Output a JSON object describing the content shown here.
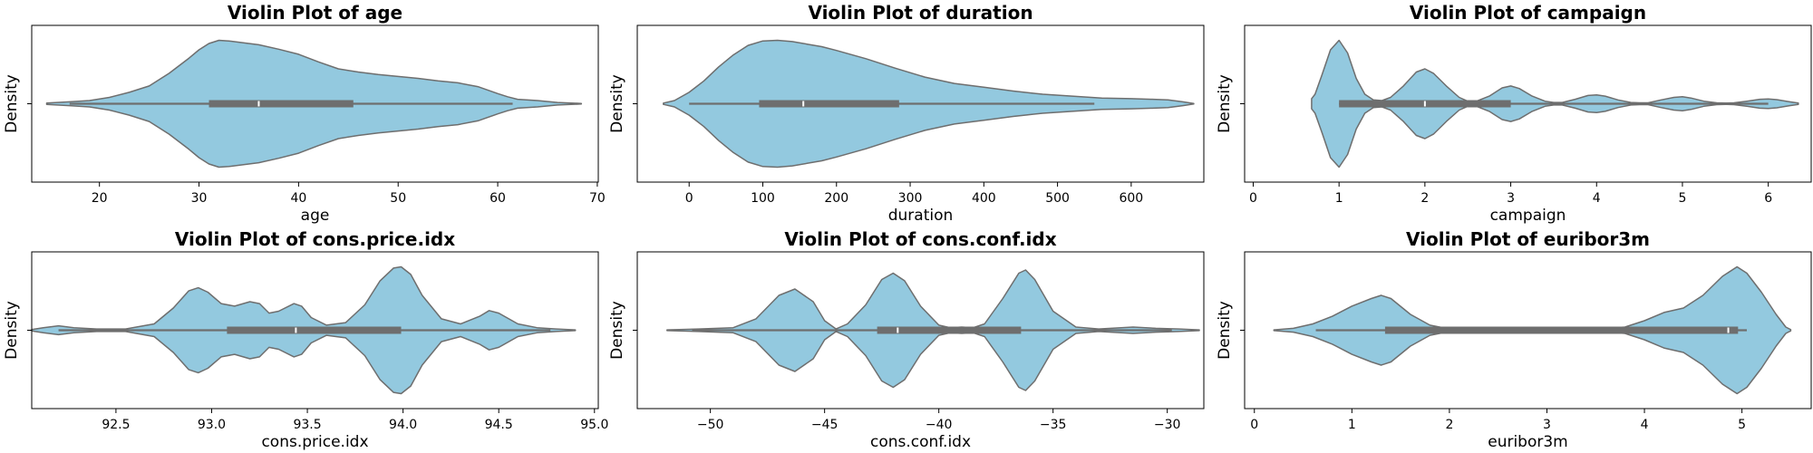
{
  "chart_data": [
    {
      "type": "violin",
      "title": "Violin Plot of age",
      "xlabel": "age",
      "ylabel": "Density",
      "xlim": [
        13.2,
        70.1
      ],
      "xticks": [
        20,
        30,
        40,
        50,
        60,
        70
      ],
      "xtick_labels": [
        "20",
        "30",
        "40",
        "50",
        "60",
        "70"
      ],
      "color": "#93c9df",
      "summary": {
        "min": 17,
        "q1": 31,
        "median": 36,
        "q3": 45.5,
        "max": 61.5
      },
      "density": [
        [
          14.7,
          0.01
        ],
        [
          17,
          0.03
        ],
        [
          19,
          0.05
        ],
        [
          21,
          0.1
        ],
        [
          23,
          0.18
        ],
        [
          25,
          0.28
        ],
        [
          27,
          0.48
        ],
        [
          29,
          0.72
        ],
        [
          30,
          0.85
        ],
        [
          31,
          0.95
        ],
        [
          32,
          1.0
        ],
        [
          33,
          0.99
        ],
        [
          35,
          0.95
        ],
        [
          36,
          0.93
        ],
        [
          38,
          0.86
        ],
        [
          40,
          0.78
        ],
        [
          42,
          0.66
        ],
        [
          44,
          0.55
        ],
        [
          46,
          0.5
        ],
        [
          48,
          0.46
        ],
        [
          50,
          0.43
        ],
        [
          52,
          0.4
        ],
        [
          54,
          0.36
        ],
        [
          56,
          0.33
        ],
        [
          58,
          0.27
        ],
        [
          60,
          0.16
        ],
        [
          61,
          0.11
        ],
        [
          62,
          0.07
        ],
        [
          64,
          0.05
        ],
        [
          66,
          0.02
        ],
        [
          68.4,
          0.005
        ]
      ]
    },
    {
      "type": "violin",
      "title": "Violin Plot of duration",
      "xlabel": "duration",
      "ylabel": "Density",
      "xlim": [
        -70.4,
        698.6
      ],
      "xticks": [
        0,
        100,
        200,
        300,
        400,
        500,
        600,
        700
      ],
      "xtick_labels": [
        "0",
        "100",
        "200",
        "300",
        "400",
        "500",
        "600",
        "700"
      ],
      "color": "#93c9df",
      "summary": {
        "min": 0,
        "q1": 95,
        "median": 155,
        "q3": 285,
        "max": 550
      },
      "density": [
        [
          -35,
          0.01
        ],
        [
          -20,
          0.05
        ],
        [
          0,
          0.18
        ],
        [
          20,
          0.36
        ],
        [
          40,
          0.58
        ],
        [
          60,
          0.77
        ],
        [
          80,
          0.92
        ],
        [
          100,
          0.99
        ],
        [
          120,
          1.0
        ],
        [
          140,
          0.98
        ],
        [
          160,
          0.94
        ],
        [
          180,
          0.9
        ],
        [
          200,
          0.84
        ],
        [
          240,
          0.71
        ],
        [
          280,
          0.56
        ],
        [
          320,
          0.42
        ],
        [
          360,
          0.32
        ],
        [
          400,
          0.26
        ],
        [
          440,
          0.2
        ],
        [
          480,
          0.15
        ],
        [
          520,
          0.12
        ],
        [
          560,
          0.09
        ],
        [
          600,
          0.08
        ],
        [
          630,
          0.07
        ],
        [
          650,
          0.06
        ],
        [
          670,
          0.03
        ],
        [
          685,
          0.005
        ]
      ]
    },
    {
      "type": "violin",
      "title": "Violin Plot of campaign",
      "xlabel": "campaign",
      "ylabel": "Density",
      "xlim": [
        -0.1,
        6.5
      ],
      "xticks": [
        0,
        1,
        2,
        3,
        4,
        5,
        6
      ],
      "xtick_labels": [
        "0",
        "1",
        "2",
        "3",
        "4",
        "5",
        "6"
      ],
      "color": "#93c9df",
      "summary": {
        "min": 1,
        "q1": 1,
        "median": 2,
        "q3": 3,
        "max": 6
      },
      "density": [
        [
          0.68,
          0.08
        ],
        [
          0.72,
          0.15
        ],
        [
          0.8,
          0.45
        ],
        [
          0.9,
          0.85
        ],
        [
          1.0,
          1.0
        ],
        [
          1.1,
          0.8
        ],
        [
          1.2,
          0.4
        ],
        [
          1.3,
          0.15
        ],
        [
          1.4,
          0.06
        ],
        [
          1.5,
          0.05
        ],
        [
          1.6,
          0.1
        ],
        [
          1.75,
          0.28
        ],
        [
          1.9,
          0.5
        ],
        [
          2.0,
          0.55
        ],
        [
          2.1,
          0.48
        ],
        [
          2.25,
          0.28
        ],
        [
          2.4,
          0.1
        ],
        [
          2.5,
          0.04
        ],
        [
          2.6,
          0.04
        ],
        [
          2.75,
          0.12
        ],
        [
          2.9,
          0.25
        ],
        [
          3.0,
          0.28
        ],
        [
          3.1,
          0.24
        ],
        [
          3.25,
          0.12
        ],
        [
          3.4,
          0.04
        ],
        [
          3.5,
          0.02
        ],
        [
          3.6,
          0.02
        ],
        [
          3.75,
          0.07
        ],
        [
          3.9,
          0.13
        ],
        [
          4.0,
          0.14
        ],
        [
          4.1,
          0.12
        ],
        [
          4.25,
          0.06
        ],
        [
          4.4,
          0.02
        ],
        [
          4.5,
          0.015
        ],
        [
          4.6,
          0.015
        ],
        [
          4.75,
          0.06
        ],
        [
          4.9,
          0.1
        ],
        [
          5.0,
          0.11
        ],
        [
          5.1,
          0.09
        ],
        [
          5.25,
          0.04
        ],
        [
          5.4,
          0.015
        ],
        [
          5.5,
          0.01
        ],
        [
          5.6,
          0.015
        ],
        [
          5.75,
          0.04
        ],
        [
          5.9,
          0.07
        ],
        [
          6.0,
          0.075
        ],
        [
          6.1,
          0.065
        ],
        [
          6.25,
          0.03
        ],
        [
          6.35,
          0.01
        ]
      ]
    },
    {
      "type": "violin",
      "title": "Violin Plot of cons.price.idx",
      "xlabel": "cons.price.idx",
      "ylabel": "Density",
      "xlim": [
        92.06,
        95.02
      ],
      "xticks": [
        92.0,
        92.5,
        93.0,
        93.5,
        94.0,
        94.5,
        95.0
      ],
      "xtick_labels": [
        "92.0",
        "92.5",
        "93.0",
        "93.5",
        "94.0",
        "94.5",
        "95.0"
      ],
      "color": "#93c9df",
      "summary": {
        "min": 92.2,
        "q1": 93.08,
        "median": 93.44,
        "q3": 93.99,
        "max": 94.77
      },
      "density": [
        [
          92.06,
          0.01
        ],
        [
          92.12,
          0.04
        ],
        [
          92.2,
          0.07
        ],
        [
          92.28,
          0.04
        ],
        [
          92.4,
          0.02
        ],
        [
          92.55,
          0.02
        ],
        [
          92.7,
          0.1
        ],
        [
          92.8,
          0.35
        ],
        [
          92.88,
          0.62
        ],
        [
          92.93,
          0.67
        ],
        [
          92.98,
          0.6
        ],
        [
          93.05,
          0.42
        ],
        [
          93.12,
          0.38
        ],
        [
          93.2,
          0.45
        ],
        [
          93.25,
          0.42
        ],
        [
          93.3,
          0.27
        ],
        [
          93.35,
          0.3
        ],
        [
          93.43,
          0.42
        ],
        [
          93.47,
          0.38
        ],
        [
          93.52,
          0.2
        ],
        [
          93.6,
          0.08
        ],
        [
          93.7,
          0.12
        ],
        [
          93.8,
          0.4
        ],
        [
          93.88,
          0.78
        ],
        [
          93.95,
          0.98
        ],
        [
          93.99,
          1.0
        ],
        [
          94.04,
          0.88
        ],
        [
          94.1,
          0.55
        ],
        [
          94.2,
          0.18
        ],
        [
          94.3,
          0.1
        ],
        [
          94.4,
          0.22
        ],
        [
          94.45,
          0.31
        ],
        [
          94.5,
          0.27
        ],
        [
          94.6,
          0.1
        ],
        [
          94.7,
          0.04
        ],
        [
          94.8,
          0.02
        ],
        [
          94.9,
          0.005
        ]
      ]
    },
    {
      "type": "violin",
      "title": "Violin Plot of cons.conf.idx",
      "xlabel": "cons.conf.idx",
      "ylabel": "Density",
      "xlim": [
        -53.2,
        -28.4
      ],
      "xticks": [
        -50,
        -45,
        -40,
        -35,
        -30
      ],
      "xtick_labels": [
        "−50",
        "−45",
        "−40",
        "−35",
        "−30"
      ],
      "color": "#93c9df",
      "summary": {
        "min": -50.8,
        "q1": -42.7,
        "median": -41.8,
        "q3": -36.4,
        "max": -29.8
      },
      "density": [
        [
          -51.9,
          0.005
        ],
        [
          -50.5,
          0.02
        ],
        [
          -49,
          0.04
        ],
        [
          -48,
          0.18
        ],
        [
          -47,
          0.55
        ],
        [
          -46.3,
          0.65
        ],
        [
          -45.5,
          0.45
        ],
        [
          -45,
          0.15
        ],
        [
          -44.5,
          0.02
        ],
        [
          -44,
          0.1
        ],
        [
          -43.2,
          0.4
        ],
        [
          -42.5,
          0.8
        ],
        [
          -42,
          0.9
        ],
        [
          -41.5,
          0.78
        ],
        [
          -40.8,
          0.38
        ],
        [
          -40,
          0.08
        ],
        [
          -39.5,
          0.04
        ],
        [
          -39,
          0.05
        ],
        [
          -38.5,
          0.04
        ],
        [
          -38,
          0.1
        ],
        [
          -37.2,
          0.5
        ],
        [
          -36.5,
          0.9
        ],
        [
          -36.2,
          0.95
        ],
        [
          -35.8,
          0.8
        ],
        [
          -35,
          0.3
        ],
        [
          -34,
          0.05
        ],
        [
          -33,
          0.02
        ],
        [
          -31.5,
          0.05
        ],
        [
          -30.5,
          0.03
        ],
        [
          -29.5,
          0.02
        ],
        [
          -28.6,
          0.005
        ]
      ]
    },
    {
      "type": "violin",
      "title": "Violin Plot of euribor3m",
      "xlabel": "euribor3m",
      "ylabel": "Density",
      "xlim": [
        -0.1,
        5.71
      ],
      "xticks": [
        0,
        1,
        2,
        3,
        4,
        5
      ],
      "xtick_labels": [
        "0",
        "1",
        "2",
        "3",
        "4",
        "5"
      ],
      "color": "#93c9df",
      "summary": {
        "min": 0.63,
        "q1": 1.34,
        "median": 4.86,
        "q3": 4.96,
        "max": 5.05
      },
      "density": [
        [
          0.2,
          0.005
        ],
        [
          0.4,
          0.03
        ],
        [
          0.6,
          0.1
        ],
        [
          0.8,
          0.22
        ],
        [
          1.0,
          0.38
        ],
        [
          1.2,
          0.5
        ],
        [
          1.3,
          0.55
        ],
        [
          1.4,
          0.5
        ],
        [
          1.6,
          0.25
        ],
        [
          1.8,
          0.08
        ],
        [
          2.0,
          0.02
        ],
        [
          2.5,
          0.01
        ],
        [
          3.0,
          0.01
        ],
        [
          3.5,
          0.02
        ],
        [
          3.8,
          0.05
        ],
        [
          4.0,
          0.15
        ],
        [
          4.2,
          0.28
        ],
        [
          4.4,
          0.35
        ],
        [
          4.6,
          0.55
        ],
        [
          4.8,
          0.85
        ],
        [
          4.95,
          1.0
        ],
        [
          5.05,
          0.9
        ],
        [
          5.2,
          0.6
        ],
        [
          5.35,
          0.25
        ],
        [
          5.45,
          0.05
        ],
        [
          5.5,
          0.01
        ]
      ]
    }
  ]
}
